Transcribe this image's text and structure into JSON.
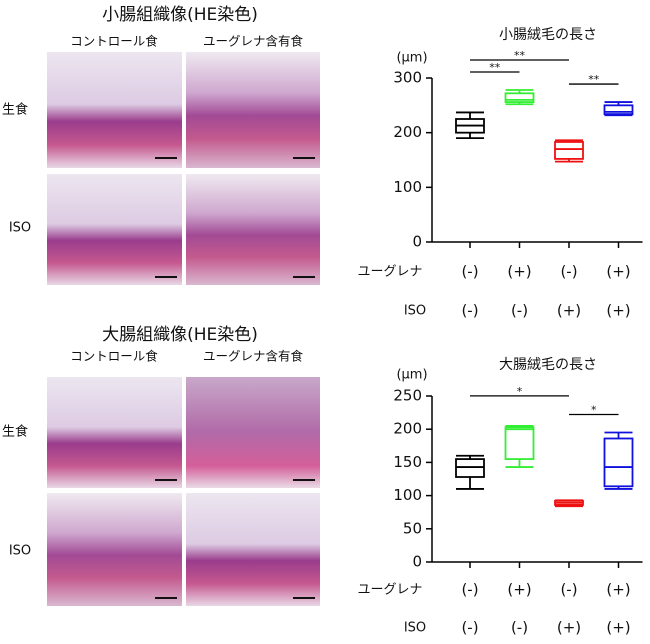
{
  "histology": [
    {
      "title": "小腸組織像(HE染色)",
      "columns": [
        "コントロール食",
        "ユーグレナ含有食"
      ],
      "rows": [
        "生食",
        "ISO"
      ]
    },
    {
      "title": "大腸組織像(HE染色)",
      "columns": [
        "コントロール食",
        "ユーグレナ含有食"
      ],
      "rows": [
        "生食",
        "ISO"
      ]
    }
  ],
  "chart_data": [
    {
      "type": "box",
      "title": "小腸絨毛の長さ",
      "y_label": "(μm)",
      "ylim": [
        0,
        300
      ],
      "yticks": [
        0,
        100,
        200,
        300
      ],
      "factors": [
        {
          "name": "ユーグレナ",
          "levels": [
            "(-)",
            "(+)",
            "(-)",
            "(+)"
          ]
        },
        {
          "name": "ISO",
          "levels": [
            "(-)",
            "(-)",
            "(+)",
            "(+)"
          ]
        }
      ],
      "series": [
        {
          "color": "#000000",
          "min": 190,
          "q1": 200,
          "median": 213,
          "q3": 225,
          "max": 237
        },
        {
          "color": "#33ee33",
          "min": 252,
          "q1": 256,
          "median": 260,
          "q3": 272,
          "max": 278
        },
        {
          "color": "#ee1111",
          "min": 147,
          "q1": 152,
          "median": 170,
          "q3": 183,
          "max": 186
        },
        {
          "color": "#1111dd",
          "min": 232,
          "q1": 234,
          "median": 238,
          "q3": 250,
          "max": 256
        }
      ],
      "significance": [
        {
          "pair": [
            0,
            2
          ],
          "label": "**"
        },
        {
          "pair": [
            0,
            1
          ],
          "label": "**"
        },
        {
          "pair": [
            2,
            3
          ],
          "label": "**"
        }
      ]
    },
    {
      "type": "box",
      "title": "大腸絨毛の長さ",
      "y_label": "(μm)",
      "ylim": [
        0,
        250
      ],
      "yticks": [
        0,
        50,
        100,
        150,
        200,
        250
      ],
      "factors": [
        {
          "name": "ユーグレナ",
          "levels": [
            "(-)",
            "(+)",
            "(-)",
            "(+)"
          ]
        },
        {
          "name": "ISO",
          "levels": [
            "(-)",
            "(-)",
            "(+)",
            "(+)"
          ]
        }
      ],
      "series": [
        {
          "color": "#000000",
          "min": 110,
          "q1": 128,
          "median": 143,
          "q3": 155,
          "max": 160
        },
        {
          "color": "#33ee33",
          "min": 143,
          "q1": 155,
          "median": 200,
          "q3": 203,
          "max": 205
        },
        {
          "color": "#ee1111",
          "min": 84,
          "q1": 86,
          "median": 89,
          "q3": 92,
          "max": 93
        },
        {
          "color": "#1111dd",
          "min": 110,
          "q1": 114,
          "median": 143,
          "q3": 186,
          "max": 195
        }
      ],
      "significance": [
        {
          "pair": [
            0,
            2
          ],
          "label": "*"
        },
        {
          "pair": [
            2,
            3
          ],
          "label": "*"
        }
      ]
    }
  ]
}
